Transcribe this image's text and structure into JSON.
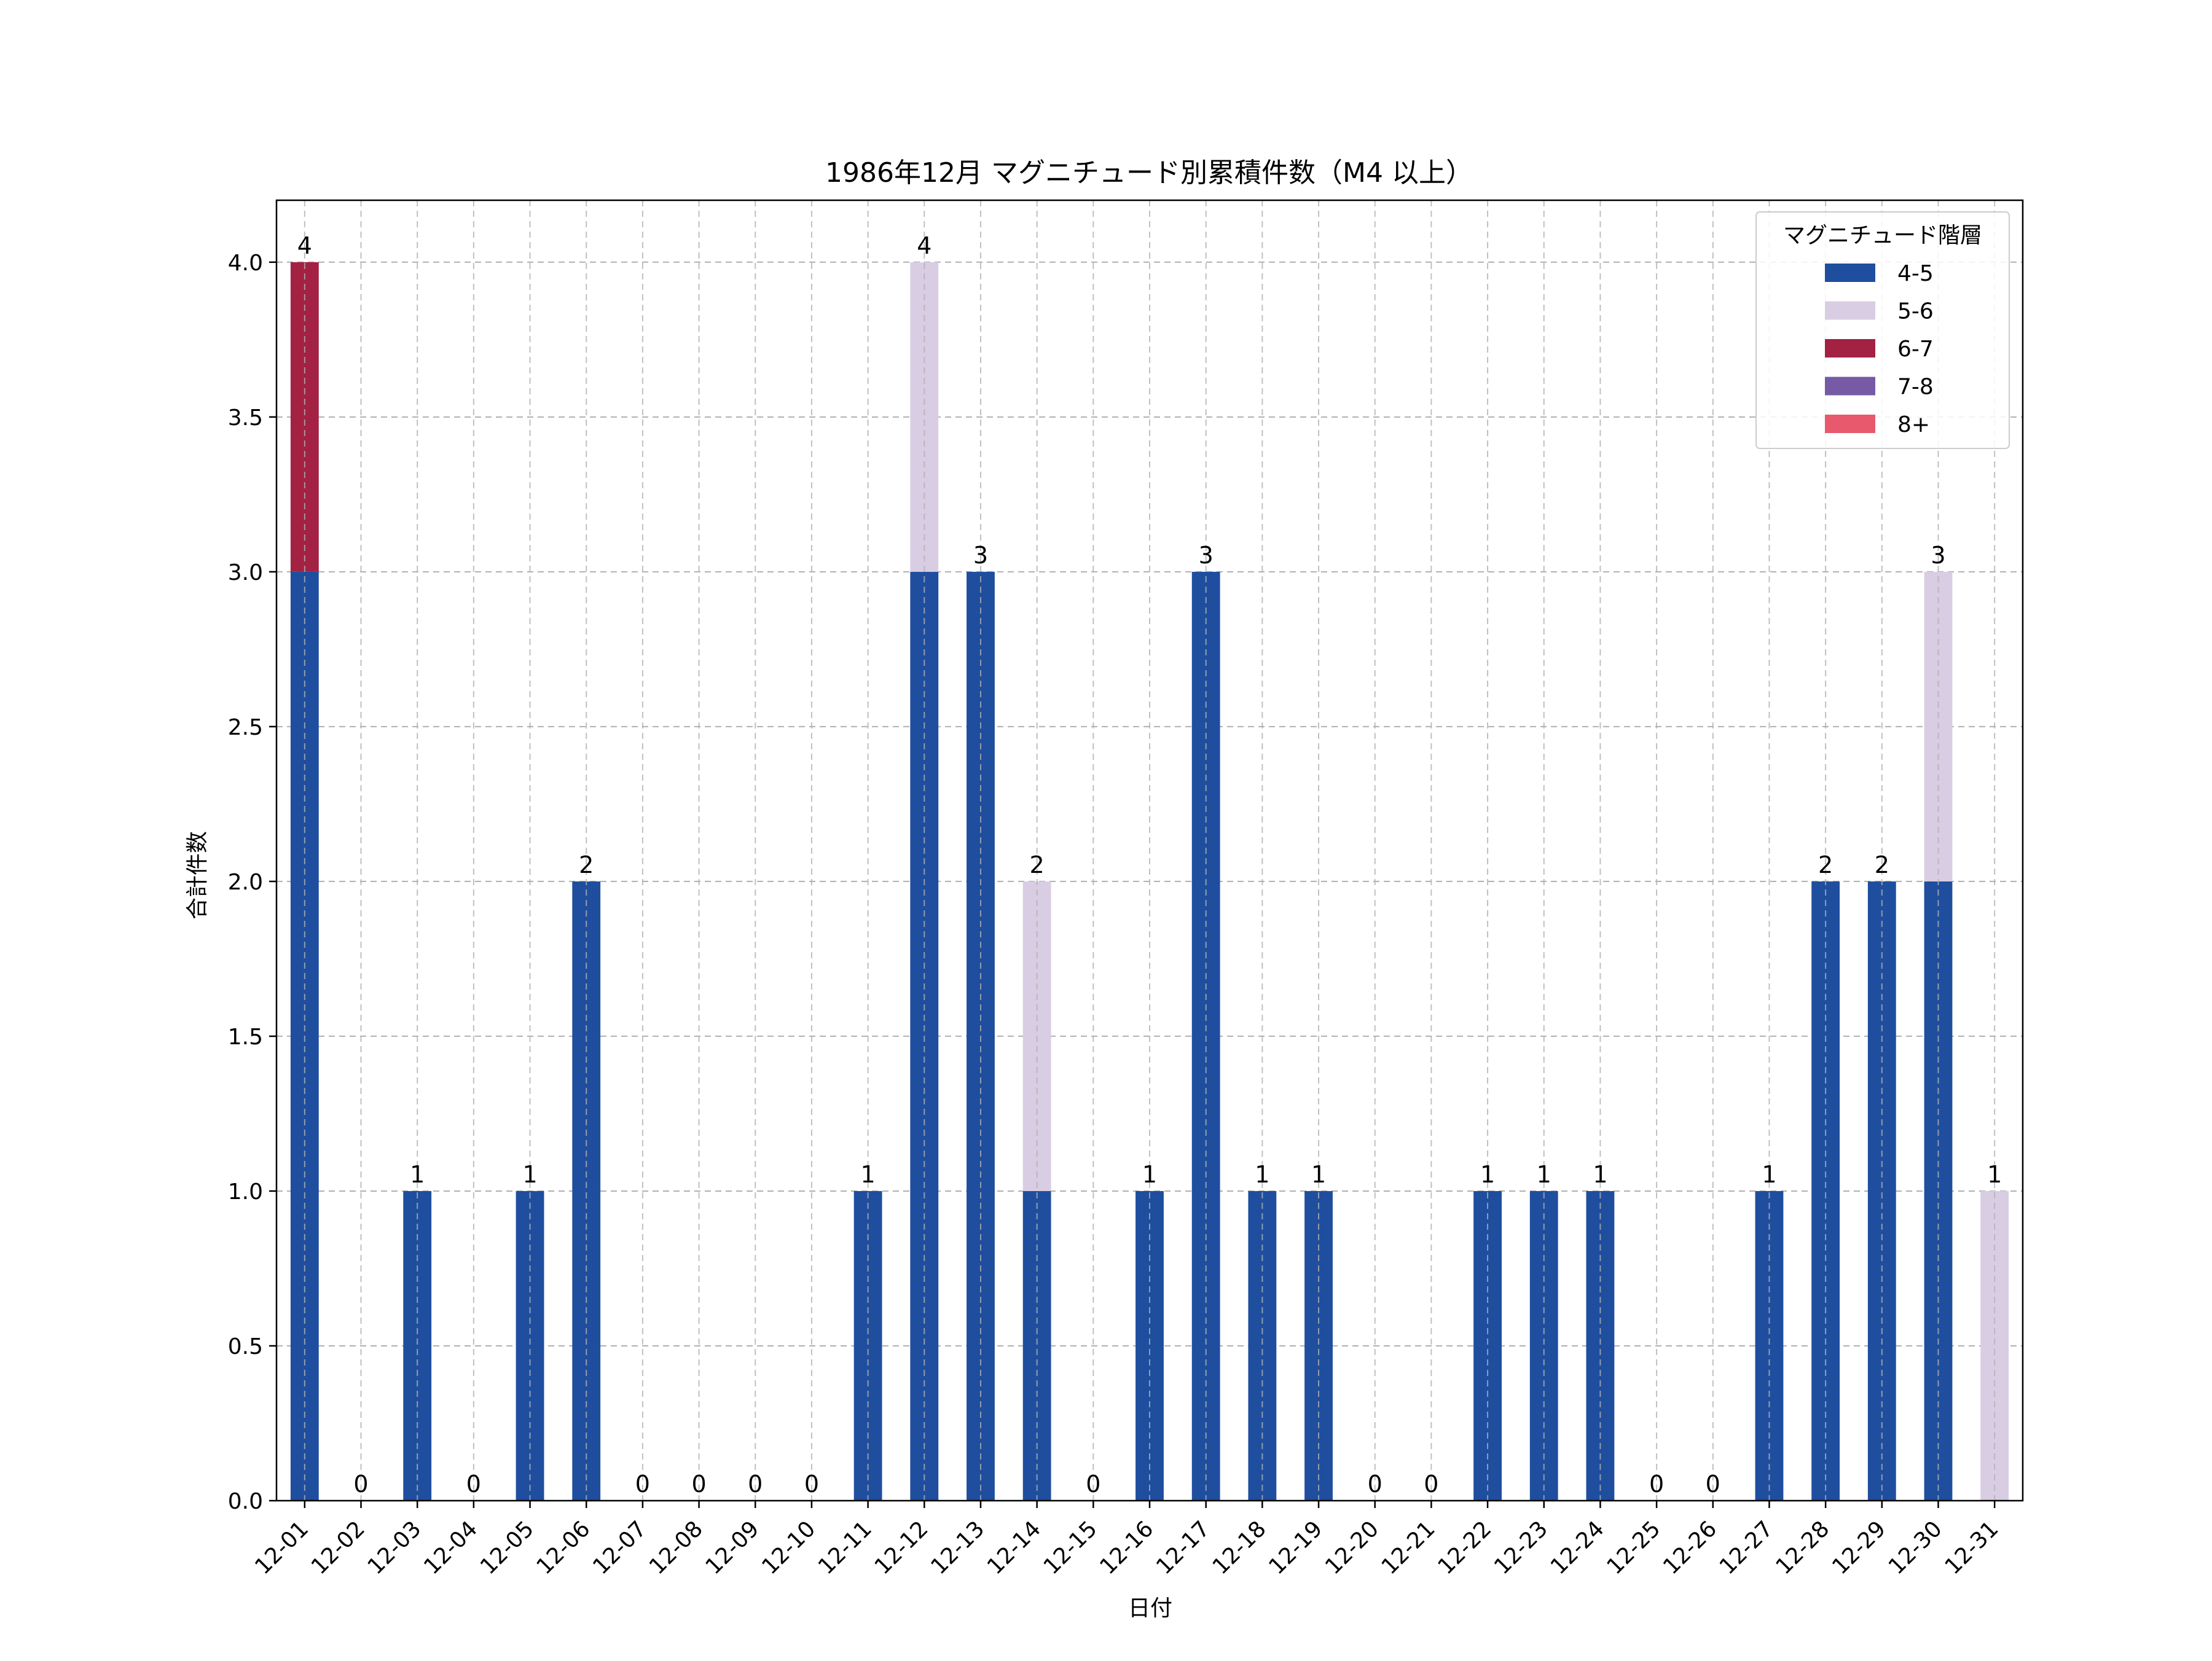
{
  "chart_data": {
    "type": "bar",
    "stacked": true,
    "title": "1986年12月 マグニチュード別累積件数（M4 以上）",
    "xlabel": "日付",
    "ylabel": "合計件数",
    "ylim": [
      0,
      4.2
    ],
    "yticks": [
      0.0,
      0.5,
      1.0,
      1.5,
      2.0,
      2.5,
      3.0,
      3.5,
      4.0
    ],
    "grid": true,
    "legend": {
      "title": "マグニチュード階層",
      "placement": "top-right"
    },
    "categories": [
      "12-01",
      "12-02",
      "12-03",
      "12-04",
      "12-05",
      "12-06",
      "12-07",
      "12-08",
      "12-09",
      "12-10",
      "12-11",
      "12-12",
      "12-13",
      "12-14",
      "12-15",
      "12-16",
      "12-17",
      "12-18",
      "12-19",
      "12-20",
      "12-21",
      "12-22",
      "12-23",
      "12-24",
      "12-25",
      "12-26",
      "12-27",
      "12-28",
      "12-29",
      "12-30",
      "12-31"
    ],
    "series": [
      {
        "name": "4-5",
        "color": "#1f4e9e",
        "values": [
          3,
          0,
          1,
          0,
          1,
          2,
          0,
          0,
          0,
          0,
          1,
          3,
          3,
          1,
          0,
          1,
          3,
          1,
          1,
          0,
          0,
          1,
          1,
          1,
          0,
          0,
          1,
          2,
          2,
          2,
          0
        ]
      },
      {
        "name": "5-6",
        "color": "#d9cde4",
        "values": [
          0,
          0,
          0,
          0,
          0,
          0,
          0,
          0,
          0,
          0,
          0,
          1,
          0,
          1,
          0,
          0,
          0,
          0,
          0,
          0,
          0,
          0,
          0,
          0,
          0,
          0,
          0,
          0,
          0,
          1,
          1
        ]
      },
      {
        "name": "6-7",
        "color": "#a32143",
        "values": [
          1,
          0,
          0,
          0,
          0,
          0,
          0,
          0,
          0,
          0,
          0,
          0,
          0,
          0,
          0,
          0,
          0,
          0,
          0,
          0,
          0,
          0,
          0,
          0,
          0,
          0,
          0,
          0,
          0,
          0,
          0
        ]
      },
      {
        "name": "7-8",
        "color": "#765aa6",
        "values": [
          0,
          0,
          0,
          0,
          0,
          0,
          0,
          0,
          0,
          0,
          0,
          0,
          0,
          0,
          0,
          0,
          0,
          0,
          0,
          0,
          0,
          0,
          0,
          0,
          0,
          0,
          0,
          0,
          0,
          0,
          0
        ]
      },
      {
        "name": "8+",
        "color": "#e8596e",
        "values": [
          0,
          0,
          0,
          0,
          0,
          0,
          0,
          0,
          0,
          0,
          0,
          0,
          0,
          0,
          0,
          0,
          0,
          0,
          0,
          0,
          0,
          0,
          0,
          0,
          0,
          0,
          0,
          0,
          0,
          0,
          0
        ]
      }
    ],
    "totals": [
      4,
      0,
      1,
      0,
      1,
      2,
      0,
      0,
      0,
      0,
      1,
      4,
      3,
      2,
      0,
      1,
      3,
      1,
      1,
      0,
      0,
      1,
      1,
      1,
      0,
      0,
      1,
      2,
      2,
      3,
      1
    ]
  }
}
